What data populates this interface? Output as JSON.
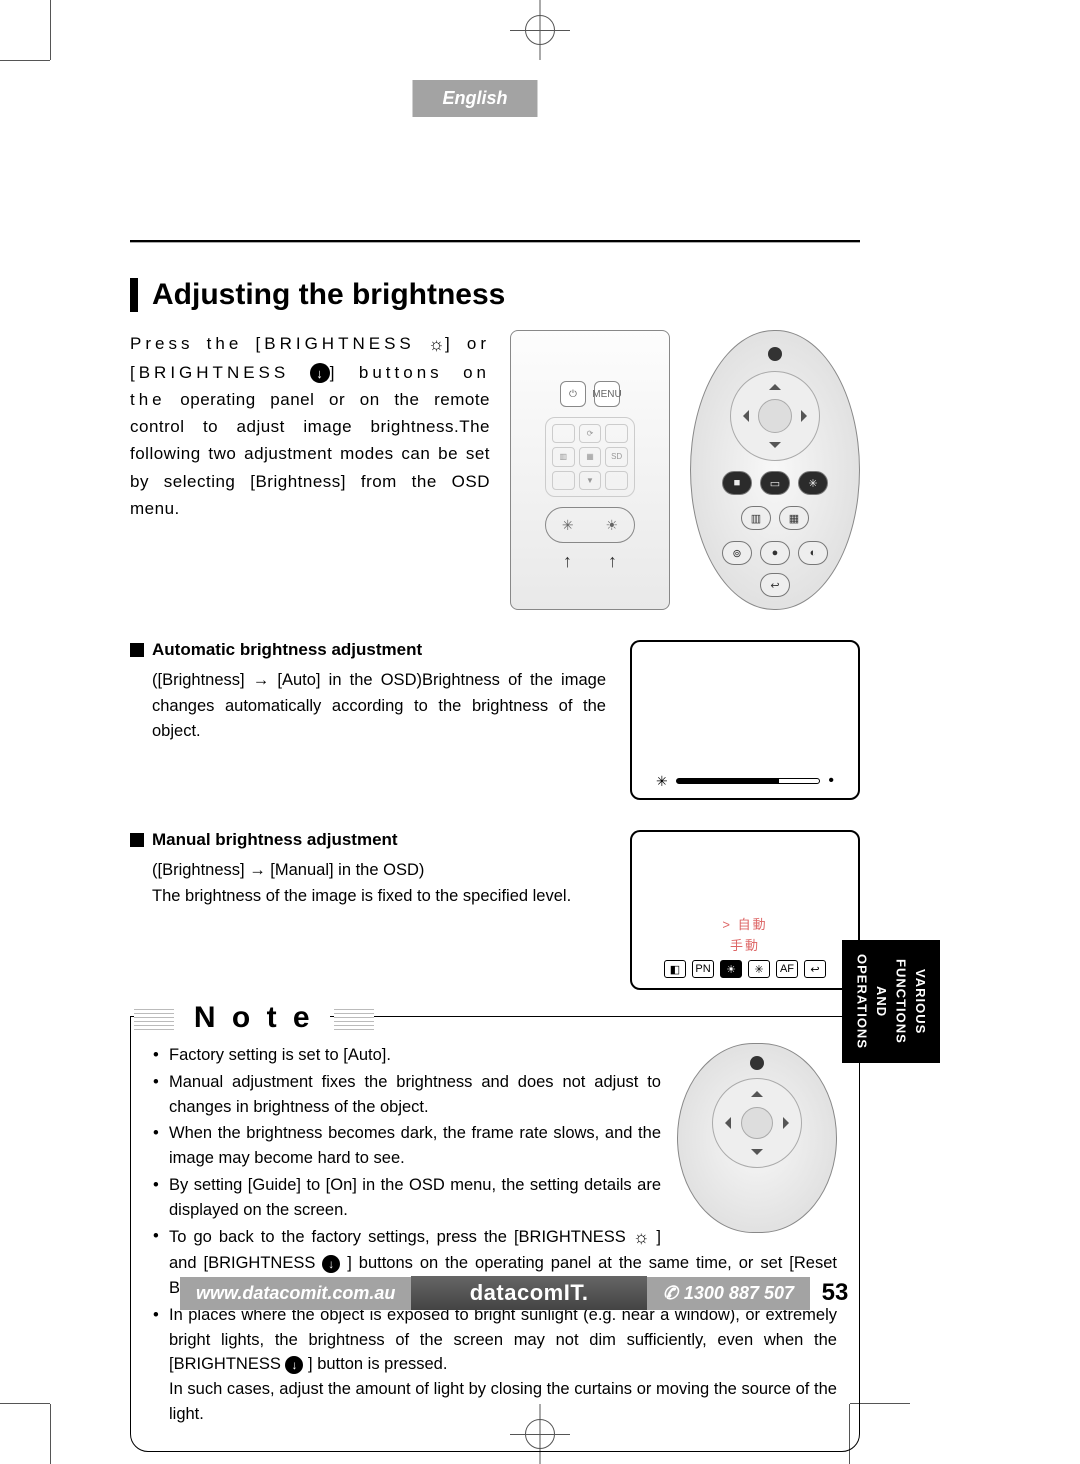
{
  "header": {
    "language": "English"
  },
  "section": {
    "title": "Adjusting the brightness"
  },
  "intro": {
    "line1_a": "Press the [BRIGHTNESS ",
    "line1_b": "] or",
    "line2_a": "[BRIGHTNESS ",
    "line2_b": "] buttons on the",
    "rest": "operating panel or on the remote control to adjust image brightness.The following two adjustment modes can be set by selecting [Brightness] from the OSD menu."
  },
  "auto": {
    "heading": "Automatic brightness adjustment",
    "body": "([Brightness] → [Auto] in the OSD)Brightness of the image changes automatically according to the brightness of the object."
  },
  "manual": {
    "heading": "Manual brightness adjustment",
    "body1": "([Brightness] → [Manual] in the OSD)",
    "body2": "The brightness of the image is fixed to the specified level."
  },
  "osd_menu": {
    "option_auto": "自動",
    "option_manual": "手動",
    "icons": [
      "◧",
      "PN",
      "☀",
      "✳",
      "AF",
      "↩"
    ]
  },
  "slider": {
    "fill_percent": 72
  },
  "note": {
    "label": "N o t e",
    "items": [
      "Factory setting is set to [Auto].",
      "Manual adjustment fixes the brightness and does not adjust to changes in brightness of the object.",
      "When the brightness becomes dark, the frame rate slows, and the image may become hard to see.",
      "By setting [Guide] to [On] in the OSD menu, the setting details are displayed on the screen."
    ],
    "item5_a": "To go back to the factory settings, press the [BRIGHTNESS ",
    "item5_b": " ] and [BRIGHTNESS ",
    "item5_c": " ] buttons on the operating panel at the same time, or set [Reset Brightness] from the OSD menu.",
    "item6_a": "In places where the object is exposed to bright sunlight (e.g. near a window), or extremely bright lights, the brightness of the screen may not dim sufficiently, even when the [BRIGHTNESS ",
    "item6_b": " ] button is pressed.",
    "item6_c": "In such cases, adjust the amount of light by closing the curtains or moving the source of the light."
  },
  "side_tab": {
    "line1": "VARIOUS",
    "line2": "FUNCTIONS",
    "line3": "AND",
    "line4": "OPERATIONS"
  },
  "footer": {
    "url": "www.datacomit.com.au",
    "brand": "datacomIT.",
    "phone": "1300 887 507",
    "page": "53"
  },
  "colors": {
    "tab_gray": "#a3a3a3",
    "text_black": "#000000",
    "osd_red": "#d66666"
  }
}
